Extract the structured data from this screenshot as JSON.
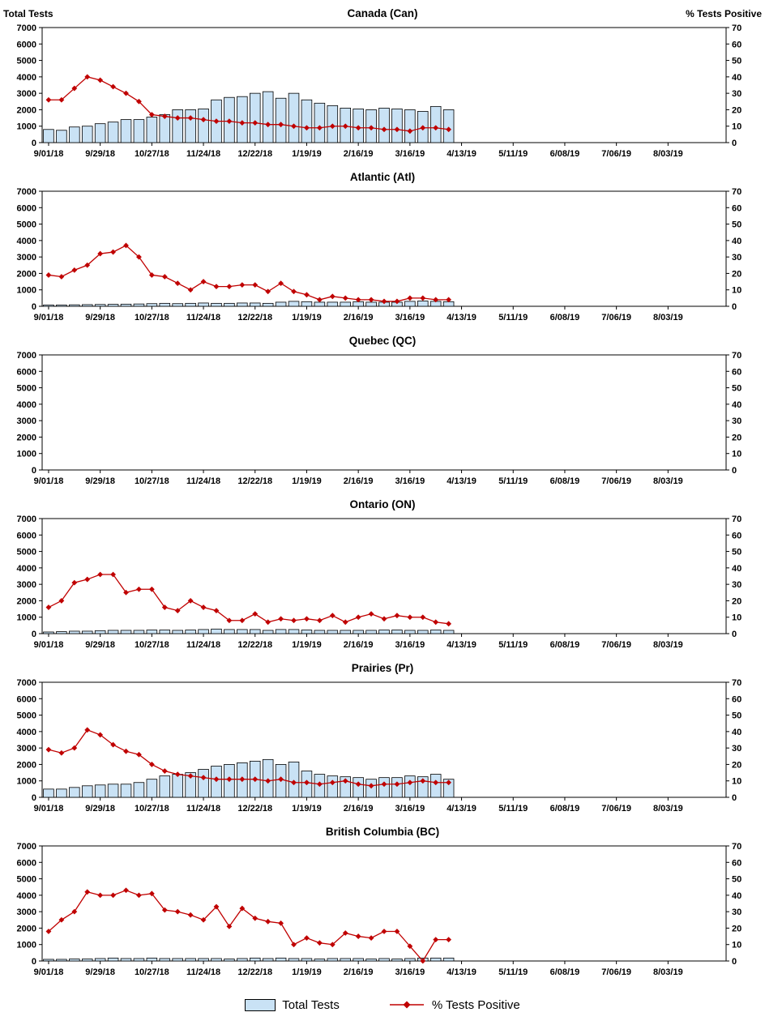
{
  "page": {
    "left_axis_title": "Total Tests",
    "right_axis_title": "% Tests Positive"
  },
  "legend": {
    "bars_label": "Total Tests",
    "line_label": "% Tests Positive"
  },
  "colors": {
    "bar_fill": "#C9E2F5",
    "bar_stroke": "#000000",
    "line_color": "#C00000",
    "axis_color": "#000000"
  },
  "axes": {
    "left_ticks": [
      0,
      1000,
      2000,
      3000,
      4000,
      5000,
      6000,
      7000
    ],
    "right_ticks": [
      0,
      10,
      20,
      30,
      40,
      50,
      60,
      70
    ],
    "left_ylim": [
      0,
      7000
    ],
    "right_ylim": [
      0,
      70
    ],
    "x_tick_labels": [
      "9/01/18",
      "9/29/18",
      "10/27/18",
      "11/24/18",
      "12/22/18",
      "1/19/19",
      "2/16/19",
      "3/16/19",
      "4/13/19",
      "5/11/19",
      "6/08/19",
      "7/06/19",
      "8/03/19"
    ],
    "n_slots": 53,
    "grid": false,
    "legend_position": "bottom"
  },
  "chart_x_weekly_dates": [
    "9/01/18",
    "9/08/18",
    "9/15/18",
    "9/22/18",
    "9/29/18",
    "10/06/18",
    "10/13/18",
    "10/20/18",
    "10/27/18",
    "11/03/18",
    "11/10/18",
    "11/17/18",
    "11/24/18",
    "12/01/18",
    "12/08/18",
    "12/15/18",
    "12/22/18",
    "12/29/18",
    "1/05/19",
    "1/12/19",
    "1/19/19",
    "1/26/19",
    "2/02/19",
    "2/09/19",
    "2/16/19",
    "2/23/19",
    "3/02/19",
    "3/09/19",
    "3/16/19",
    "3/23/19",
    "3/30/19",
    "4/06/19"
  ],
  "chart_data": [
    {
      "type": "combo",
      "title": "Canada (Can)",
      "ylim_left": [
        0,
        7000
      ],
      "ylim_right": [
        0,
        70
      ],
      "series": [
        {
          "name": "Total Tests",
          "type": "bar",
          "axis": "left",
          "values": [
            800,
            750,
            950,
            1000,
            1150,
            1250,
            1400,
            1400,
            1550,
            1700,
            2000,
            2000,
            2050,
            2600,
            2750,
            2800,
            3000,
            3100,
            2700,
            3000,
            2600,
            2400,
            2250,
            2100,
            2050,
            2000,
            2100,
            2050,
            2000,
            1900,
            2200,
            2000
          ]
        },
        {
          "name": "% Tests Positive",
          "type": "line",
          "axis": "right",
          "values": [
            26,
            26,
            33,
            40,
            38,
            34,
            30,
            25,
            17,
            16,
            15,
            15,
            14,
            13,
            13,
            12,
            12,
            11,
            11,
            10,
            9,
            9,
            10,
            10,
            9,
            9,
            8,
            8,
            7,
            9,
            9,
            8
          ]
        }
      ]
    },
    {
      "type": "combo",
      "title": "Atlantic (Atl)",
      "ylim_left": [
        0,
        7000
      ],
      "ylim_right": [
        0,
        70
      ],
      "series": [
        {
          "name": "Total Tests",
          "type": "bar",
          "axis": "left",
          "values": [
            80,
            80,
            90,
            100,
            110,
            120,
            130,
            140,
            160,
            180,
            160,
            180,
            200,
            180,
            180,
            200,
            200,
            180,
            250,
            300,
            280,
            250,
            250,
            250,
            280,
            250,
            250,
            250,
            300,
            320,
            300,
            280
          ]
        },
        {
          "name": "% Tests Positive",
          "type": "line",
          "axis": "right",
          "values": [
            19,
            18,
            22,
            25,
            32,
            33,
            37,
            30,
            19,
            18,
            14,
            10,
            15,
            12,
            12,
            13,
            13,
            9,
            14,
            9,
            7,
            4,
            6,
            5,
            4,
            4,
            3,
            3,
            5,
            5,
            4,
            4
          ]
        }
      ]
    },
    {
      "type": "combo",
      "title": "Quebec (QC)",
      "ylim_left": [
        0,
        7000
      ],
      "ylim_right": [
        0,
        70
      ],
      "series": [
        {
          "name": "Total Tests",
          "type": "bar",
          "axis": "left",
          "values": []
        },
        {
          "name": "% Tests Positive",
          "type": "line",
          "axis": "right",
          "values": []
        }
      ]
    },
    {
      "type": "combo",
      "title": "Ontario (ON)",
      "ylim_left": [
        0,
        7000
      ],
      "ylim_right": [
        0,
        70
      ],
      "series": [
        {
          "name": "Total Tests",
          "type": "bar",
          "axis": "left",
          "values": [
            100,
            120,
            150,
            150,
            180,
            200,
            200,
            200,
            220,
            220,
            200,
            220,
            250,
            280,
            250,
            250,
            250,
            200,
            250,
            250,
            220,
            200,
            200,
            200,
            200,
            200,
            220,
            220,
            200,
            200,
            220,
            200
          ]
        },
        {
          "name": "% Tests Positive",
          "type": "line",
          "axis": "right",
          "values": [
            16,
            20,
            31,
            33,
            36,
            36,
            25,
            27,
            27,
            16,
            14,
            20,
            16,
            14,
            8,
            8,
            12,
            7,
            9,
            8,
            9,
            8,
            11,
            7,
            10,
            12,
            9,
            11,
            10,
            10,
            7,
            6
          ]
        }
      ]
    },
    {
      "type": "combo",
      "title": "Prairies (Pr)",
      "ylim_left": [
        0,
        7000
      ],
      "ylim_right": [
        0,
        70
      ],
      "series": [
        {
          "name": "Total Tests",
          "type": "bar",
          "axis": "left",
          "values": [
            500,
            500,
            600,
            700,
            750,
            800,
            800,
            900,
            1100,
            1300,
            1400,
            1500,
            1700,
            1900,
            2000,
            2100,
            2200,
            2300,
            2000,
            2150,
            1600,
            1400,
            1300,
            1250,
            1200,
            1100,
            1200,
            1200,
            1300,
            1250,
            1400,
            1100
          ]
        },
        {
          "name": "% Tests Positive",
          "type": "line",
          "axis": "right",
          "values": [
            29,
            27,
            30,
            41,
            38,
            32,
            28,
            26,
            20,
            16,
            14,
            13,
            12,
            11,
            11,
            11,
            11,
            10,
            11,
            9,
            9,
            8,
            9,
            10,
            8,
            7,
            8,
            8,
            9,
            10,
            9,
            9
          ]
        }
      ]
    },
    {
      "type": "combo",
      "title": "British Columbia (BC)",
      "ylim_left": [
        0,
        7000
      ],
      "ylim_right": [
        0,
        70
      ],
      "series": [
        {
          "name": "Total Tests",
          "type": "bar",
          "axis": "left",
          "values": [
            100,
            100,
            120,
            120,
            150,
            180,
            150,
            150,
            180,
            150,
            150,
            150,
            150,
            150,
            120,
            150,
            180,
            150,
            180,
            150,
            150,
            120,
            150,
            150,
            150,
            120,
            150,
            120,
            150,
            180,
            180,
            180
          ]
        },
        {
          "name": "% Tests Positive",
          "type": "line",
          "axis": "right",
          "values": [
            18,
            25,
            30,
            42,
            40,
            40,
            43,
            40,
            41,
            31,
            30,
            28,
            25,
            33,
            21,
            32,
            26,
            24,
            23,
            10,
            14,
            11,
            10,
            17,
            15,
            14,
            18,
            18,
            9,
            0,
            13,
            13
          ]
        }
      ]
    }
  ]
}
